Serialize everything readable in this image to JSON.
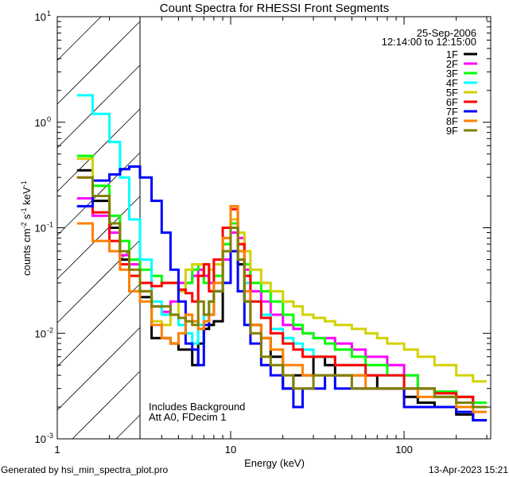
{
  "chart_data": {
    "type": "line",
    "title": "Count Spectra for RHESSI Front Segments",
    "xlabel": "Energy (keV)",
    "ylabel": "counts cm",
    "ylabel_parts": [
      "counts cm",
      "-2",
      " s",
      "-1",
      " keV",
      "-1"
    ],
    "xscale": "log",
    "yscale": "log",
    "xlim": [
      1,
      316
    ],
    "ylim": [
      0.001,
      10
    ],
    "x_ticks": [
      {
        "v": 1,
        "label": "1"
      },
      {
        "v": 10,
        "label": "10"
      },
      {
        "v": 100,
        "label": "100"
      }
    ],
    "y_ticks": [
      {
        "v": 10,
        "base": "10",
        "exp": "1"
      },
      {
        "v": 1,
        "base": "10",
        "exp": "0"
      },
      {
        "v": 0.1,
        "base": "10",
        "exp": "-1"
      },
      {
        "v": 0.01,
        "base": "10",
        "exp": "-2"
      },
      {
        "v": 0.001,
        "base": "10",
        "exp": "-3"
      }
    ],
    "shaded_region": [
      1,
      3
    ],
    "date": "25-Sep-2006",
    "time_range": "12:14:00 to 12:15:00",
    "annotations": [
      "Includes Background",
      "Att A0, FDecim 1"
    ],
    "legend_position": "top-right",
    "energy_edges": [
      1.3,
      1.6,
      2.0,
      2.3,
      2.6,
      3.0,
      3.5,
      4.0,
      4.5,
      5.0,
      5.5,
      6.0,
      6.5,
      7.0,
      7.5,
      8.0,
      9.0,
      10,
      11,
      12,
      13,
      15,
      17,
      20,
      23,
      26,
      30,
      35,
      40,
      50,
      60,
      70,
      80,
      100,
      120,
      150,
      200,
      250,
      300
    ],
    "series": [
      {
        "name": "1F",
        "color": "#000000",
        "values": [
          0.35,
          0.18,
          0.1,
          0.05,
          0.035,
          0.022,
          0.009,
          0.009,
          0.008,
          0.007,
          0.007,
          0.005,
          0.008,
          0.011,
          0.012,
          0.013,
          0.06,
          0.1,
          0.045,
          0.02,
          0.012,
          0.009,
          0.006,
          0.003,
          0.004,
          0.004,
          0.006,
          0.005,
          0.004,
          0.004,
          0.004,
          0.003,
          0.003,
          0.0025,
          0.0022,
          0.002,
          0.0017,
          0.0015
        ]
      },
      {
        "name": "2F",
        "color": "#ff00ff",
        "values": [
          0.19,
          0.13,
          0.09,
          0.055,
          0.045,
          0.025,
          0.018,
          0.016,
          0.02,
          0.03,
          0.03,
          0.035,
          0.04,
          0.035,
          0.03,
          0.035,
          0.05,
          0.09,
          0.08,
          0.04,
          0.025,
          0.02,
          0.015,
          0.012,
          0.011,
          0.01,
          0.009,
          0.009,
          0.008,
          0.007,
          0.006,
          0.006,
          0.005,
          0.004,
          0.003,
          0.0028,
          0.0025,
          0.0022
        ]
      },
      {
        "name": "3F",
        "color": "#00ff00",
        "values": [
          0.48,
          0.25,
          0.13,
          0.075,
          0.05,
          0.04,
          0.035,
          0.03,
          0.03,
          0.025,
          0.03,
          0.04,
          0.045,
          0.03,
          0.04,
          0.035,
          0.07,
          0.11,
          0.07,
          0.045,
          0.03,
          0.025,
          0.02,
          0.015,
          0.012,
          0.01,
          0.009,
          0.008,
          0.007,
          0.006,
          0.005,
          0.005,
          0.004,
          0.004,
          0.003,
          0.0028,
          0.0025,
          0.0022
        ]
      },
      {
        "name": "4F",
        "color": "#00ffff",
        "values": [
          1.8,
          1.2,
          0.65,
          0.3,
          0.12,
          0.05,
          0.02,
          0.015,
          0.015,
          0.012,
          0.01,
          0.008,
          0.012,
          0.015,
          0.02,
          0.025,
          0.08,
          0.1,
          0.06,
          0.03,
          0.02,
          0.015,
          0.011,
          0.009,
          0.008,
          0.007,
          0.006,
          0.006,
          0.005,
          0.005,
          0.004,
          0.004,
          0.004,
          0.003,
          0.003,
          0.0025,
          0.0022,
          0.002
        ]
      },
      {
        "name": "5F",
        "color": "#d2d200",
        "values": [
          0.45,
          0.2,
          0.11,
          0.06,
          0.035,
          0.025,
          0.013,
          0.012,
          0.015,
          0.025,
          0.04,
          0.045,
          0.045,
          0.045,
          0.04,
          0.045,
          0.08,
          0.12,
          0.09,
          0.06,
          0.04,
          0.03,
          0.025,
          0.02,
          0.018,
          0.015,
          0.014,
          0.013,
          0.012,
          0.011,
          0.01,
          0.009,
          0.008,
          0.007,
          0.006,
          0.005,
          0.004,
          0.0035
        ]
      },
      {
        "name": "6F",
        "color": "#ff0000",
        "values": [
          0.3,
          0.14,
          0.075,
          0.045,
          0.035,
          0.03,
          0.028,
          0.03,
          0.03,
          0.026,
          0.024,
          0.02,
          0.035,
          0.045,
          0.025,
          0.05,
          0.1,
          0.15,
          0.07,
          0.035,
          0.02,
          0.014,
          0.01,
          0.008,
          0.007,
          0.006,
          0.006,
          0.006,
          0.005,
          0.005,
          0.004,
          0.004,
          0.004,
          0.003,
          0.003,
          0.0027,
          0.0025,
          0.002
        ]
      },
      {
        "name": "7F",
        "color": "#0000ff",
        "values": [
          0.16,
          0.28,
          0.32,
          0.36,
          0.38,
          0.3,
          0.18,
          0.09,
          0.04,
          0.02,
          0.008,
          0.007,
          0.005,
          0.012,
          0.015,
          0.025,
          0.03,
          0.06,
          0.025,
          0.012,
          0.008,
          0.005,
          0.004,
          0.003,
          0.002,
          0.003,
          0.003,
          0.004,
          0.003,
          0.003,
          0.003,
          0.003,
          0.003,
          0.002,
          0.002,
          0.002,
          0.0018,
          0.0015
        ]
      },
      {
        "name": "8F",
        "color": "#ff8000",
        "values": [
          0.11,
          0.075,
          0.06,
          0.04,
          0.025,
          0.02,
          0.012,
          0.009,
          0.008,
          0.01,
          0.015,
          0.013,
          0.011,
          0.013,
          0.015,
          0.03,
          0.08,
          0.16,
          0.06,
          0.025,
          0.012,
          0.009,
          0.007,
          0.005,
          0.005,
          0.004,
          0.004,
          0.004,
          0.004,
          0.004,
          0.003,
          0.003,
          0.003,
          0.003,
          0.0025,
          0.0025,
          0.002,
          0.0018
        ]
      },
      {
        "name": "9F",
        "color": "#808000",
        "values": [
          0.3,
          0.2,
          0.11,
          0.06,
          0.04,
          0.025,
          0.018,
          0.018,
          0.015,
          0.014,
          0.013,
          0.012,
          0.02,
          0.015,
          0.02,
          0.025,
          0.06,
          0.1,
          0.05,
          0.02,
          0.01,
          0.006,
          0.005,
          0.004,
          0.003,
          0.003,
          0.004,
          0.004,
          0.004,
          0.003,
          0.003,
          0.003,
          0.003,
          0.003,
          0.003,
          0.0025,
          0.0022,
          0.002
        ]
      }
    ]
  },
  "footer": {
    "generated_by": "Generated by hsi_min_spectra_plot.pro",
    "timestamp": "13-Apr-2023 15:21"
  }
}
